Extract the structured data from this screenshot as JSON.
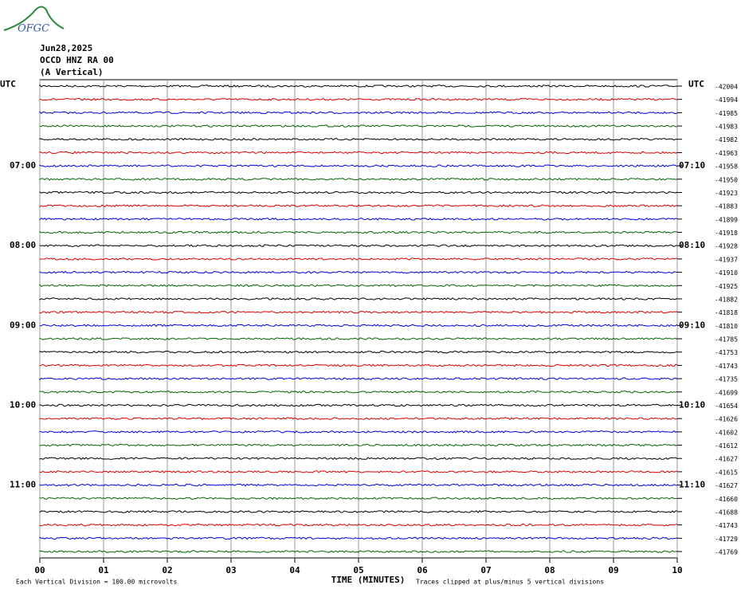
{
  "logo_text": "OFGC",
  "header": {
    "date": "Jun28,2025",
    "station": "OCCD HNZ RA 00",
    "component": "(A Vertical)"
  },
  "left_timezone": "UTC",
  "right_timezone": "UTC",
  "rows": [
    {
      "value": "-42004"
    },
    {
      "value": "-41994"
    },
    {
      "value": "-41985"
    },
    {
      "value": "-41983"
    },
    {
      "value": "-41982"
    },
    {
      "value": "-41963"
    },
    {
      "left": "07:00",
      "right": "07:10",
      "value": "-41958"
    },
    {
      "value": "-41950"
    },
    {
      "value": "-41923"
    },
    {
      "value": "-41883"
    },
    {
      "value": "-41899"
    },
    {
      "value": "-41918"
    },
    {
      "left": "08:00",
      "right": "08:10",
      "value": "-41928"
    },
    {
      "value": "-41937"
    },
    {
      "value": "-41910"
    },
    {
      "value": "-41925"
    },
    {
      "value": "-41882"
    },
    {
      "value": "-41818"
    },
    {
      "left": "09:00",
      "right": "09:10",
      "value": "-41810"
    },
    {
      "value": "-41785"
    },
    {
      "value": "-41753"
    },
    {
      "value": "-41743"
    },
    {
      "value": "-41735"
    },
    {
      "value": "-41699"
    },
    {
      "left": "10:00",
      "right": "10:10",
      "value": "-41654"
    },
    {
      "value": "-41626"
    },
    {
      "value": "-41602"
    },
    {
      "value": "-41612"
    },
    {
      "value": "-41627"
    },
    {
      "value": "-41615"
    },
    {
      "left": "11:00",
      "right": "11:10",
      "value": "-41627"
    },
    {
      "value": "-41660"
    },
    {
      "value": "-41688"
    },
    {
      "value": "-41743"
    },
    {
      "value": "-41729"
    },
    {
      "value": "-41769"
    }
  ],
  "trace_colors": [
    "#000000",
    "#dd0000",
    "#0000dd",
    "#006600"
  ],
  "x_ticks": [
    "00",
    "01",
    "02",
    "03",
    "04",
    "05",
    "06",
    "07",
    "08",
    "09",
    "10"
  ],
  "x_title": "TIME (MINUTES)",
  "footer": {
    "scale": "Each Vertical Division =  100.00 microvolts",
    "clip": "Traces clipped at plus/minus 5 vertical divisions"
  }
}
